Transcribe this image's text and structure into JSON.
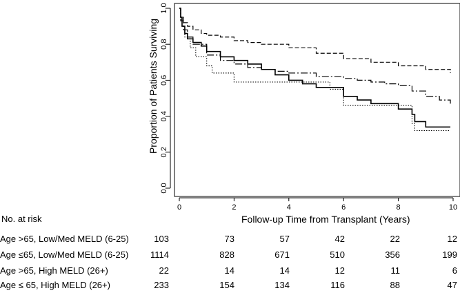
{
  "chart_data": {
    "type": "line",
    "title": "",
    "xlabel": "Follow-up Time from Transplant (Years)",
    "ylabel": "Proportion of Patients Surviving",
    "xlim": [
      0,
      10
    ],
    "ylim": [
      0,
      1
    ],
    "xticks": [
      "0",
      "2",
      "4",
      "6",
      "8",
      "10"
    ],
    "yticks": [
      "0.0",
      "0.2",
      "0.4",
      "0.6",
      "0.8",
      "1.0"
    ],
    "grid": false,
    "series": [
      {
        "style": "solid",
        "color": "#000000",
        "x": [
          0,
          0.05,
          0.1,
          0.2,
          0.3,
          0.5,
          0.8,
          1.0,
          1.5,
          2.0,
          2.5,
          3.0,
          3.5,
          4.0,
          4.5,
          5.0,
          5.5,
          6.0,
          6.5,
          7.0,
          7.5,
          8.0,
          8.5,
          8.6,
          9.0,
          9.9
        ],
        "y": [
          1.0,
          0.95,
          0.9,
          0.86,
          0.83,
          0.81,
          0.79,
          0.76,
          0.73,
          0.71,
          0.69,
          0.66,
          0.63,
          0.6,
          0.58,
          0.56,
          0.56,
          0.51,
          0.49,
          0.47,
          0.47,
          0.44,
          0.41,
          0.37,
          0.34,
          0.34
        ]
      },
      {
        "style": "dashed",
        "color": "#000000",
        "x": [
          0,
          0.05,
          0.15,
          0.3,
          0.5,
          0.8,
          1.0,
          1.5,
          2.0,
          2.5,
          3.0,
          4.0,
          5.0,
          6.0,
          7.0,
          8.0,
          9.0,
          9.9
        ],
        "y": [
          1.0,
          0.95,
          0.92,
          0.9,
          0.88,
          0.86,
          0.85,
          0.84,
          0.82,
          0.81,
          0.8,
          0.78,
          0.75,
          0.72,
          0.7,
          0.68,
          0.66,
          0.64
        ]
      },
      {
        "style": "dotted",
        "color": "#000000",
        "x": [
          0,
          0.05,
          0.1,
          0.2,
          0.4,
          0.6,
          0.8,
          1.0,
          1.2,
          1.5,
          2.0,
          3.0,
          4.0,
          5.0,
          5.5,
          6.0,
          7.0,
          8.0,
          8.5,
          8.6,
          9.0,
          9.9
        ],
        "y": [
          1.0,
          0.94,
          0.9,
          0.84,
          0.78,
          0.73,
          0.73,
          0.68,
          0.64,
          0.64,
          0.59,
          0.59,
          0.59,
          0.59,
          0.55,
          0.46,
          0.46,
          0.46,
          0.36,
          0.32,
          0.32,
          0.32
        ]
      },
      {
        "style": "longdash",
        "color": "#000000",
        "x": [
          0,
          0.05,
          0.15,
          0.3,
          0.5,
          1.0,
          1.5,
          2.0,
          2.5,
          3.0,
          3.5,
          4.0,
          5.0,
          6.0,
          6.5,
          7.0,
          7.5,
          8.0,
          8.5,
          9.0,
          9.5,
          9.9
        ],
        "y": [
          1.0,
          0.93,
          0.88,
          0.84,
          0.8,
          0.74,
          0.71,
          0.69,
          0.67,
          0.66,
          0.65,
          0.64,
          0.62,
          0.61,
          0.6,
          0.59,
          0.58,
          0.57,
          0.54,
          0.51,
          0.49,
          0.47
        ]
      }
    ]
  },
  "risk_table": {
    "title": "No. at risk",
    "rows": [
      {
        "label": "Age >65, Low/Med MELD (6-25)",
        "values": [
          "103",
          "73",
          "57",
          "42",
          "22",
          "12"
        ]
      },
      {
        "label": "Age ≤65, Low/Med MELD (6-25)",
        "values": [
          "1114",
          "828",
          "671",
          "510",
          "356",
          "199"
        ]
      },
      {
        "label": "Age >65, High MELD (26+)",
        "values": [
          "22",
          "14",
          "14",
          "12",
          "11",
          "6"
        ]
      },
      {
        "label": "Age ≤ 65, High MELD (26+)",
        "values": [
          "233",
          "154",
          "134",
          "116",
          "88",
          "47"
        ]
      }
    ]
  }
}
